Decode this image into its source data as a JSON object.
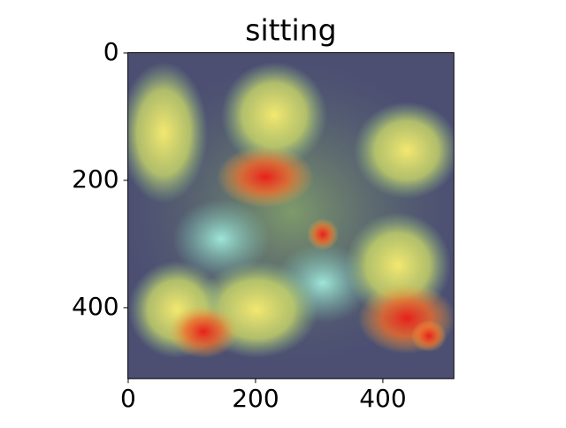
{
  "chart_data": {
    "type": "image",
    "title": "sitting",
    "xlim": [
      -0.5,
      511.5
    ],
    "ylim": [
      511.5,
      -0.5
    ],
    "xticks": [
      0,
      200,
      400
    ],
    "yticks": [
      0,
      200,
      400
    ]
  }
}
